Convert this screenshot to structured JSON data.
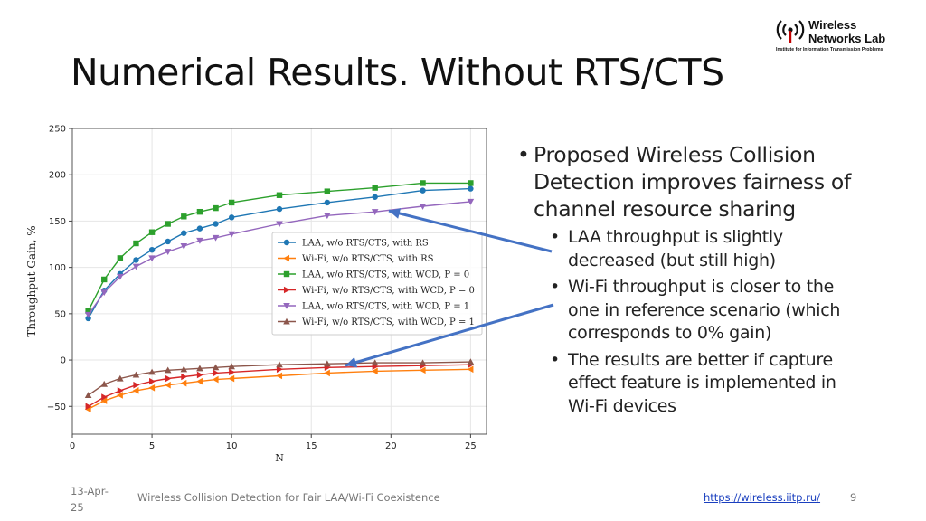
{
  "logo": {
    "line1": "Wireless",
    "line2": "Networks Lab",
    "line3": "Institute for Information Transmission Problems",
    "icon": "antenna-icon"
  },
  "slide": {
    "title": "Numerical Results. Without RTS/CTS"
  },
  "bullets": {
    "main": "Proposed Wireless Collision Detection improves fairness of channel resource sharing",
    "sub": [
      "LAA throughput is slightly decreased (but still high)",
      "Wi-Fi throughput is closer to the one in reference scenario (which corresponds to 0% gain)",
      "The results are better if capture effect feature is implemented in Wi-Fi devices"
    ]
  },
  "footer": {
    "date": "13-Apr-25",
    "center": "Wireless Collision Detection for Fair LAA/Wi-Fi Coexistence",
    "url": "https://wireless.iitp.ru/",
    "page": "9"
  },
  "chart_data": {
    "type": "line",
    "xlabel": "N",
    "ylabel": "Throughput Gain, %",
    "xlim": [
      0,
      26
    ],
    "ylim": [
      -80,
      250
    ],
    "xticks": [
      0,
      5,
      10,
      15,
      20,
      25
    ],
    "yticks": [
      -50,
      0,
      50,
      100,
      150,
      200,
      250
    ],
    "legend_position": "center-right",
    "arrow_color": "#4472c4",
    "series": [
      {
        "name": "LAA, w/o RTS/CTS, with RS",
        "color": "#1f77b4",
        "marker": "circle",
        "x": [
          1,
          2,
          3,
          4,
          5,
          6,
          7,
          8,
          9,
          10,
          13,
          16,
          19,
          22,
          25
        ],
        "values": [
          45,
          75,
          93,
          108,
          119,
          128,
          137,
          142,
          147,
          154,
          163,
          170,
          176,
          183,
          185
        ]
      },
      {
        "name": "Wi-Fi, w/o RTS/CTS, with RS",
        "color": "#ff7f0e",
        "marker": "left-triangle",
        "x": [
          1,
          2,
          3,
          4,
          5,
          6,
          7,
          8,
          9,
          10,
          13,
          16,
          19,
          22,
          25
        ],
        "values": [
          -53,
          -44,
          -38,
          -33,
          -30,
          -27,
          -25,
          -23,
          -21,
          -20,
          -17,
          -14,
          -12,
          -11,
          -10
        ]
      },
      {
        "name": "LAA, w/o RTS/CTS, with WCD, P = 0",
        "color": "#2ca02c",
        "marker": "square",
        "x": [
          1,
          2,
          3,
          4,
          5,
          6,
          7,
          8,
          9,
          10,
          13,
          16,
          19,
          22,
          25
        ],
        "values": [
          53,
          87,
          110,
          126,
          138,
          147,
          155,
          160,
          164,
          170,
          178,
          182,
          186,
          191,
          191
        ]
      },
      {
        "name": "Wi-Fi, w/o RTS/CTS, with WCD, P = 0",
        "color": "#d62728",
        "marker": "right-triangle",
        "x": [
          1,
          2,
          3,
          4,
          5,
          6,
          7,
          8,
          9,
          10,
          13,
          16,
          19,
          22,
          25
        ],
        "values": [
          -50,
          -40,
          -33,
          -27,
          -23,
          -20,
          -18,
          -16,
          -14,
          -13,
          -10,
          -8,
          -7,
          -6,
          -5
        ]
      },
      {
        "name": "LAA, w/o RTS/CTS, with WCD, P = 1",
        "color": "#9467bd",
        "marker": "down-triangle",
        "x": [
          1,
          2,
          3,
          4,
          5,
          6,
          7,
          8,
          9,
          10,
          13,
          16,
          19,
          22,
          25
        ],
        "values": [
          49,
          73,
          90,
          101,
          110,
          117,
          123,
          129,
          132,
          136,
          147,
          156,
          160,
          166,
          171
        ]
      },
      {
        "name": "Wi-Fi, w/o RTS/CTS, with WCD, P = 1",
        "color": "#8c564b",
        "marker": "up-triangle",
        "x": [
          1,
          2,
          3,
          4,
          5,
          6,
          7,
          8,
          9,
          10,
          13,
          16,
          19,
          22,
          25
        ],
        "values": [
          -38,
          -26,
          -20,
          -16,
          -13,
          -11,
          -10,
          -9,
          -8,
          -7,
          -5,
          -4,
          -3,
          -3,
          -2
        ]
      }
    ]
  }
}
